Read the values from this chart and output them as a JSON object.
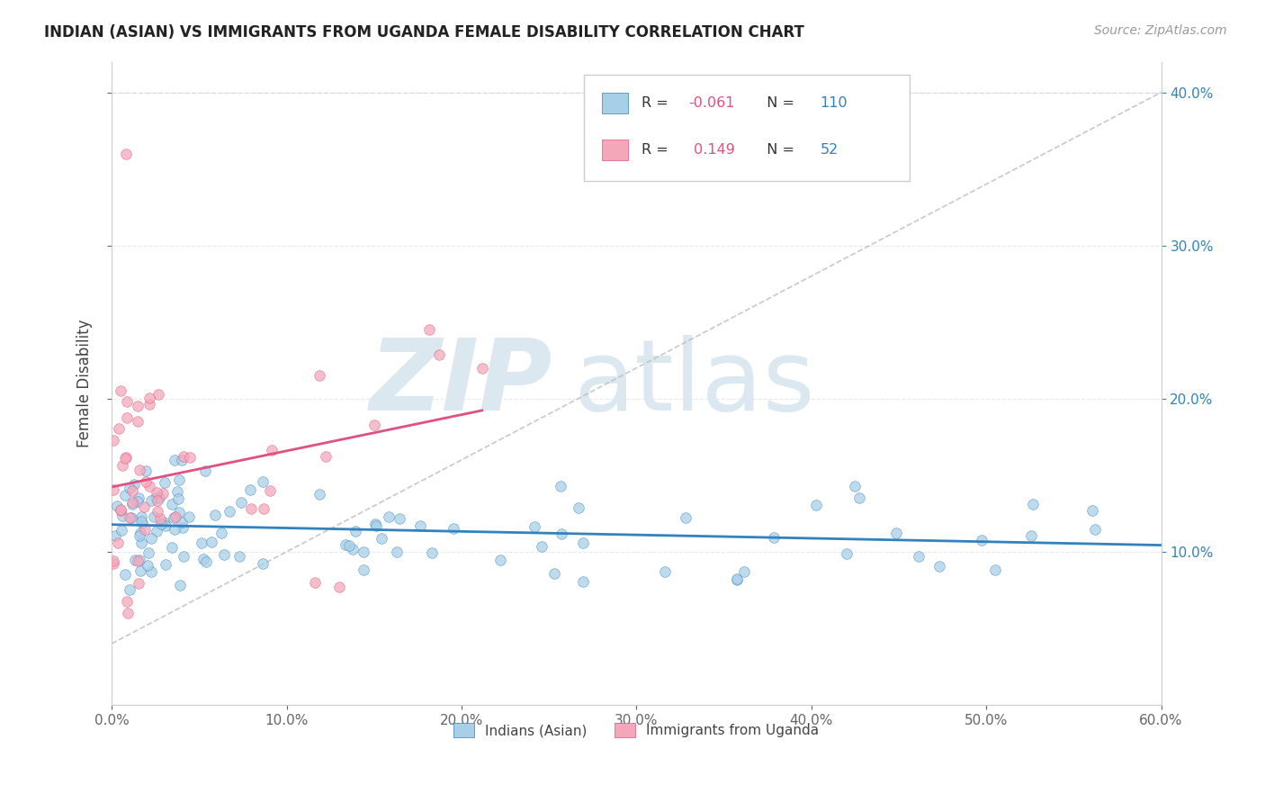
{
  "title": "INDIAN (ASIAN) VS IMMIGRANTS FROM UGANDA FEMALE DISABILITY CORRELATION CHART",
  "source": "Source: ZipAtlas.com",
  "ylabel": "Female Disability",
  "legend_label_1": "Indians (Asian)",
  "legend_label_2": "Immigrants from Uganda",
  "R1": -0.061,
  "N1": 110,
  "R2": 0.149,
  "N2": 52,
  "xlim": [
    0.0,
    0.6
  ],
  "ylim": [
    0.0,
    0.42
  ],
  "xticks": [
    0.0,
    0.1,
    0.2,
    0.3,
    0.4,
    0.5,
    0.6
  ],
  "xtick_labels": [
    "0.0%",
    "10.0%",
    "20.0%",
    "30.0%",
    "40.0%",
    "50.0%",
    "60.0%"
  ],
  "yticks": [
    0.1,
    0.2,
    0.3,
    0.4
  ],
  "ytick_labels": [
    "10.0%",
    "20.0%",
    "30.0%",
    "40.0%"
  ],
  "color_blue": "#a8cfe8",
  "color_pink": "#f4a7b9",
  "trendline_blue": "#3182bd",
  "trendline_pink": "#e05080",
  "grid_color": "#dddddd",
  "bg_color": "#ffffff"
}
